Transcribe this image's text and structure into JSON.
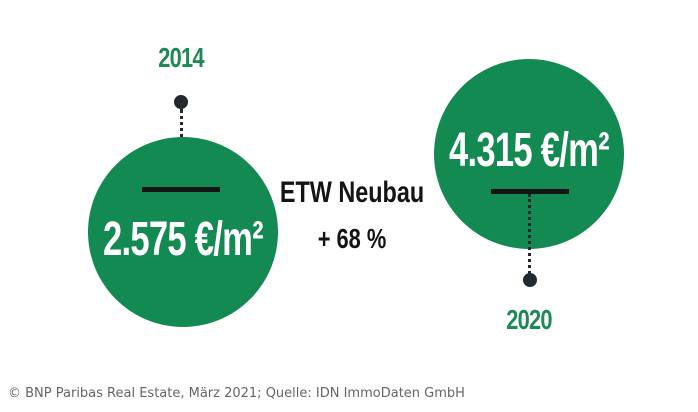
{
  "left": {
    "year": "2014",
    "price": "2.575 €/m²"
  },
  "right": {
    "year": "2020",
    "price": "4.315 €/m²"
  },
  "center": {
    "label": "ETW Neubau",
    "change": "+ 68 %"
  },
  "source": "© BNP Paribas Real Estate, März 2021; Quelle: IDN ImmoDaten GmbH",
  "colors": {
    "circle": "#128a52",
    "year_text": "#1e8a55",
    "bar": "#141414",
    "dot": "#222a30"
  }
}
